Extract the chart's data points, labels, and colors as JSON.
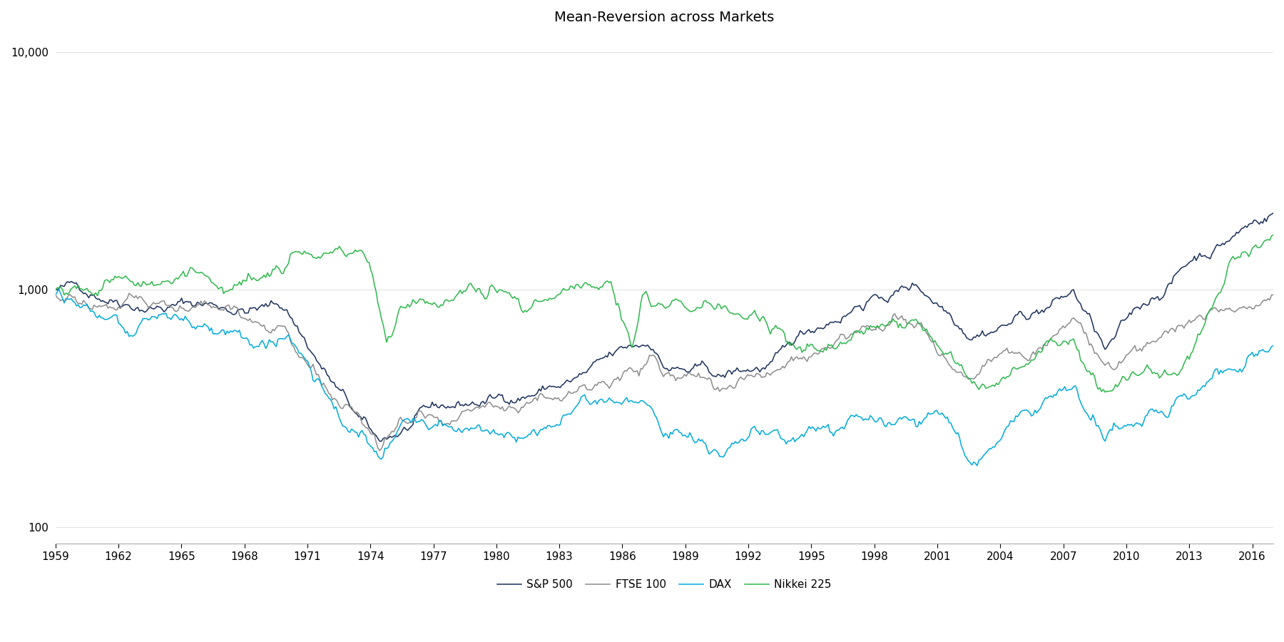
{
  "title": "Mean-Reversion across Markets",
  "series": [
    "S&P 500",
    "FTSE 100",
    "DAX",
    "Nikkei 225"
  ],
  "colors": [
    "#1a2f5a",
    "#8c8c8c",
    "#00aadd",
    "#2db84b"
  ],
  "start_year": 1959,
  "end_year": 2017,
  "yticks": [
    100,
    1000,
    10000
  ],
  "ytick_labels": [
    "100",
    "1,000",
    "10,000"
  ],
  "xticks": [
    1959,
    1962,
    1965,
    1968,
    1971,
    1974,
    1977,
    1980,
    1983,
    1986,
    1989,
    1992,
    1995,
    1998,
    2001,
    2004,
    2007,
    2010,
    2013,
    2016
  ],
  "ylim_log": [
    85,
    12000
  ],
  "background_color": "#ffffff",
  "title_fontsize": 14
}
